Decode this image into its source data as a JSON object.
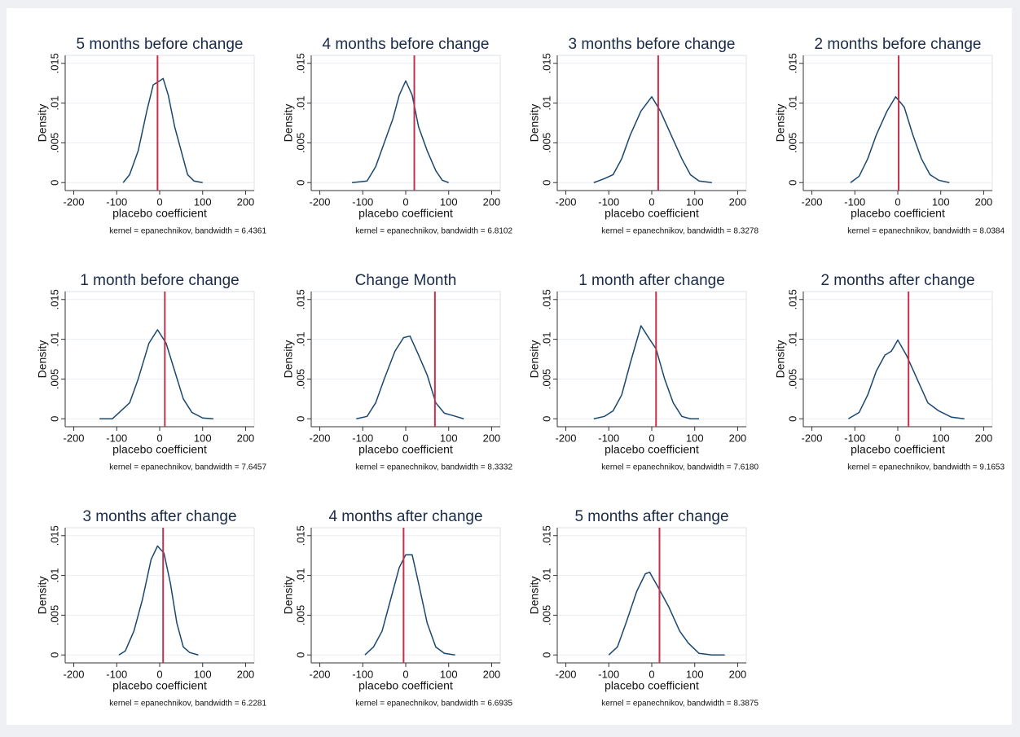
{
  "chart_data": [
    {
      "type": "line",
      "title": "5 months before change",
      "x": [
        -85,
        -70,
        -50,
        -30,
        -15,
        0,
        8,
        20,
        35,
        50,
        65,
        80,
        100
      ],
      "values": [
        0,
        0.001,
        0.004,
        0.009,
        0.0123,
        0.0128,
        0.0131,
        0.011,
        0.007,
        0.004,
        0.001,
        0.0002,
        0
      ],
      "color": "#1a476f",
      "vline": -5,
      "vline_color": "#c4314b",
      "xlabel": "placebo coefficient",
      "ylabel": "Density",
      "note": "kernel = epanechnikov, bandwidth = 6.4361",
      "xlim": [
        -220,
        220
      ],
      "xticks": [
        -200,
        -100,
        0,
        100,
        200
      ],
      "ylim": [
        -0.001,
        0.016
      ],
      "yticks": [
        0,
        {
          "value": 0.005,
          "label": ".005"
        },
        {
          "value": 0.01,
          "label": ".01"
        },
        {
          "value": 0.015,
          "label": ".015"
        }
      ],
      "grid": true
    },
    {
      "type": "line",
      "title": "4 months before change",
      "x": [
        -125,
        -90,
        -70,
        -50,
        -30,
        -15,
        0,
        15,
        30,
        50,
        70,
        85,
        100
      ],
      "values": [
        0,
        0.0002,
        0.002,
        0.005,
        0.008,
        0.011,
        0.0128,
        0.011,
        0.007,
        0.004,
        0.0015,
        0.0003,
        0
      ],
      "color": "#1a476f",
      "vline": 20,
      "vline_color": "#c4314b",
      "xlabel": "placebo coefficient",
      "ylabel": "Density",
      "note": "kernel = epanechnikov, bandwidth = 6.8102",
      "xlim": [
        -220,
        220
      ],
      "xticks": [
        -200,
        -100,
        0,
        100,
        200
      ],
      "ylim": [
        -0.001,
        0.016
      ],
      "yticks": [
        0,
        {
          "value": 0.005,
          "label": ".005"
        },
        {
          "value": 0.01,
          "label": ".01"
        },
        {
          "value": 0.015,
          "label": ".015"
        }
      ],
      "grid": true
    },
    {
      "type": "line",
      "title": "3 months before change",
      "x": [
        -135,
        -110,
        -90,
        -70,
        -50,
        -25,
        0,
        20,
        45,
        70,
        90,
        110,
        140
      ],
      "values": [
        0,
        0.0005,
        0.001,
        0.003,
        0.006,
        0.009,
        0.0108,
        0.009,
        0.006,
        0.003,
        0.001,
        0.0002,
        0
      ],
      "color": "#1a476f",
      "vline": 15,
      "vline_color": "#c4314b",
      "xlabel": "placebo coefficient",
      "ylabel": "Density",
      "note": "kernel = epanechnikov, bandwidth = 8.3278",
      "xlim": [
        -220,
        220
      ],
      "xticks": [
        -200,
        -100,
        0,
        100,
        200
      ],
      "ylim": [
        -0.001,
        0.016
      ],
      "yticks": [
        0,
        {
          "value": 0.005,
          "label": ".005"
        },
        {
          "value": 0.01,
          "label": ".01"
        },
        {
          "value": 0.015,
          "label": ".015"
        }
      ],
      "grid": true
    },
    {
      "type": "line",
      "title": "2 months before change",
      "x": [
        -110,
        -90,
        -70,
        -50,
        -25,
        -5,
        15,
        35,
        55,
        75,
        95,
        120
      ],
      "values": [
        0,
        0.0008,
        0.003,
        0.006,
        0.009,
        0.0108,
        0.0095,
        0.006,
        0.003,
        0.001,
        0.0003,
        0
      ],
      "color": "#1a476f",
      "vline": 2,
      "vline_color": "#c4314b",
      "xlabel": "placebo coefficient",
      "ylabel": "Density",
      "note": "kernel = epanechnikov, bandwidth = 8.0384",
      "xlim": [
        -220,
        220
      ],
      "xticks": [
        -200,
        -100,
        0,
        100,
        200
      ],
      "ylim": [
        -0.001,
        0.016
      ],
      "yticks": [
        0,
        {
          "value": 0.005,
          "label": ".005"
        },
        {
          "value": 0.01,
          "label": ".01"
        },
        {
          "value": 0.015,
          "label": ".015"
        }
      ],
      "grid": true
    },
    {
      "type": "line",
      "title": "1 month before change",
      "x": [
        -140,
        -110,
        -90,
        -70,
        -50,
        -25,
        -5,
        15,
        35,
        55,
        75,
        100,
        125
      ],
      "values": [
        0,
        0,
        0.001,
        0.002,
        0.005,
        0.0095,
        0.0112,
        0.0095,
        0.006,
        0.0025,
        0.0008,
        0.0001,
        0
      ],
      "color": "#1a476f",
      "vline": 12,
      "vline_color": "#c4314b",
      "xlabel": "placebo coefficient",
      "ylabel": "Density",
      "note": "kernel = epanechnikov, bandwidth = 7.6457",
      "xlim": [
        -220,
        220
      ],
      "xticks": [
        -200,
        -100,
        0,
        100,
        200
      ],
      "ylim": [
        -0.001,
        0.016
      ],
      "yticks": [
        0,
        {
          "value": 0.005,
          "label": ".005"
        },
        {
          "value": 0.01,
          "label": ".01"
        },
        {
          "value": 0.015,
          "label": ".015"
        }
      ],
      "grid": true
    },
    {
      "type": "line",
      "title": "Change Month",
      "x": [
        -115,
        -90,
        -70,
        -50,
        -25,
        -5,
        10,
        30,
        50,
        70,
        90,
        110,
        135
      ],
      "values": [
        0,
        0.0003,
        0.002,
        0.005,
        0.0085,
        0.0102,
        0.0104,
        0.008,
        0.0055,
        0.002,
        0.0007,
        0.0004,
        0
      ],
      "color": "#1a476f",
      "vline": 68,
      "vline_color": "#c4314b",
      "xlabel": "placebo coefficient",
      "ylabel": "Density",
      "note": "kernel = epanechnikov, bandwidth = 8.3332",
      "xlim": [
        -220,
        220
      ],
      "xticks": [
        -200,
        -100,
        0,
        100,
        200
      ],
      "ylim": [
        -0.001,
        0.016
      ],
      "yticks": [
        0,
        {
          "value": 0.005,
          "label": ".005"
        },
        {
          "value": 0.01,
          "label": ".01"
        },
        {
          "value": 0.015,
          "label": ".015"
        }
      ],
      "grid": true
    },
    {
      "type": "line",
      "title": "1 month after change",
      "x": [
        -135,
        -110,
        -90,
        -70,
        -50,
        -25,
        -5,
        10,
        30,
        50,
        70,
        90,
        110
      ],
      "values": [
        0,
        0.0003,
        0.001,
        0.003,
        0.007,
        0.0117,
        0.01,
        0.0088,
        0.005,
        0.002,
        0.0003,
        0,
        0
      ],
      "color": "#1a476f",
      "vline": 10,
      "vline_color": "#c4314b",
      "xlabel": "placebo coefficient",
      "ylabel": "Density",
      "note": "kernel = epanechnikov, bandwidth = 7.6180",
      "xlim": [
        -220,
        220
      ],
      "xticks": [
        -200,
        -100,
        0,
        100,
        200
      ],
      "ylim": [
        -0.001,
        0.016
      ],
      "yticks": [
        0,
        {
          "value": 0.005,
          "label": ".005"
        },
        {
          "value": 0.01,
          "label": ".01"
        },
        {
          "value": 0.015,
          "label": ".015"
        }
      ],
      "grid": true
    },
    {
      "type": "line",
      "title": "2 months after change",
      "x": [
        -115,
        -90,
        -70,
        -50,
        -30,
        -15,
        0,
        20,
        45,
        70,
        95,
        125,
        155
      ],
      "values": [
        0,
        0.0008,
        0.003,
        0.006,
        0.008,
        0.0085,
        0.0099,
        0.008,
        0.005,
        0.002,
        0.001,
        0.0002,
        0
      ],
      "color": "#1a476f",
      "vline": 25,
      "vline_color": "#c4314b",
      "xlabel": "placebo coefficient",
      "ylabel": "Density",
      "note": "kernel = epanechnikov, bandwidth = 9.1653",
      "xlim": [
        -220,
        220
      ],
      "xticks": [
        -200,
        -100,
        0,
        100,
        200
      ],
      "ylim": [
        -0.001,
        0.016
      ],
      "yticks": [
        0,
        {
          "value": 0.005,
          "label": ".005"
        },
        {
          "value": 0.01,
          "label": ".01"
        },
        {
          "value": 0.015,
          "label": ".015"
        }
      ],
      "grid": true
    },
    {
      "type": "line",
      "title": "3 months after change",
      "x": [
        -95,
        -80,
        -60,
        -40,
        -20,
        -5,
        10,
        25,
        40,
        55,
        70,
        90
      ],
      "values": [
        0,
        0.0005,
        0.003,
        0.007,
        0.012,
        0.0137,
        0.0128,
        0.009,
        0.004,
        0.001,
        0.0003,
        0
      ],
      "color": "#1a476f",
      "vline": 8,
      "vline_color": "#c4314b",
      "xlabel": "placebo coefficient",
      "ylabel": "Density",
      "note": "kernel = epanechnikov, bandwidth = 6.2281",
      "xlim": [
        -220,
        220
      ],
      "xticks": [
        -200,
        -100,
        0,
        100,
        200
      ],
      "ylim": [
        -0.001,
        0.016
      ],
      "yticks": [
        0,
        {
          "value": 0.005,
          "label": ".005"
        },
        {
          "value": 0.01,
          "label": ".01"
        },
        {
          "value": 0.015,
          "label": ".015"
        }
      ],
      "grid": true
    },
    {
      "type": "line",
      "title": "4 months after change",
      "x": [
        -95,
        -75,
        -55,
        -35,
        -15,
        0,
        15,
        30,
        50,
        70,
        90,
        115
      ],
      "values": [
        0,
        0.001,
        0.003,
        0.007,
        0.011,
        0.0126,
        0.0126,
        0.009,
        0.004,
        0.001,
        0.0002,
        0
      ],
      "color": "#1a476f",
      "vline": -5,
      "vline_color": "#c4314b",
      "xlabel": "placebo coefficient",
      "ylabel": "Density",
      "note": "kernel = epanechnikov, bandwidth = 6.6935",
      "xlim": [
        -220,
        220
      ],
      "xticks": [
        -200,
        -100,
        0,
        100,
        200
      ],
      "ylim": [
        -0.001,
        0.016
      ],
      "yticks": [
        0,
        {
          "value": 0.005,
          "label": ".005"
        },
        {
          "value": 0.01,
          "label": ".01"
        },
        {
          "value": 0.015,
          "label": ".015"
        }
      ],
      "grid": true
    },
    {
      "type": "line",
      "title": "5 months after change",
      "x": [
        -100,
        -80,
        -60,
        -35,
        -15,
        -5,
        15,
        40,
        65,
        85,
        110,
        140,
        170
      ],
      "values": [
        0,
        0.001,
        0.004,
        0.008,
        0.0102,
        0.0104,
        0.0085,
        0.006,
        0.003,
        0.0015,
        0.0002,
        0,
        0
      ],
      "color": "#1a476f",
      "vline": 18,
      "vline_color": "#c4314b",
      "xlabel": "placebo coefficient",
      "ylabel": "Density",
      "note": "kernel = epanechnikov, bandwidth = 8.3875",
      "xlim": [
        -220,
        220
      ],
      "xticks": [
        -200,
        -100,
        0,
        100,
        200
      ],
      "ylim": [
        -0.001,
        0.016
      ],
      "yticks": [
        0,
        {
          "value": 0.005,
          "label": ".005"
        },
        {
          "value": 0.01,
          "label": ".01"
        },
        {
          "value": 0.015,
          "label": ".015"
        }
      ],
      "grid": true
    }
  ]
}
